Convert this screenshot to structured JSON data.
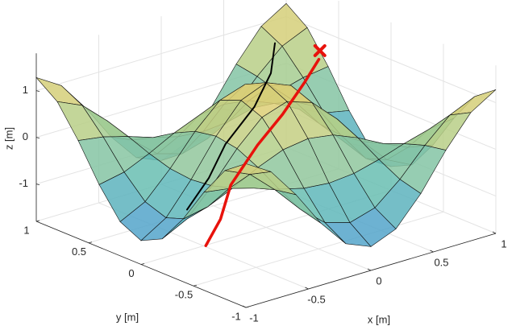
{
  "chart_data": {
    "type": "surface",
    "xlabel": "x [m]",
    "ylabel": "y [m]",
    "zlabel": "z [m]",
    "xlim": [
      -1,
      1
    ],
    "ylim": [
      -1,
      1
    ],
    "zlim": [
      -1.8,
      1.8
    ],
    "xticks": [
      -1,
      -0.5,
      0,
      0.5,
      1
    ],
    "yticks": [
      -1,
      -0.5,
      0,
      0.5,
      1
    ],
    "zticks": [
      -1,
      0,
      1
    ],
    "grid": true,
    "colormap": [
      "#4a96d6",
      "#62bcb6",
      "#b4cf8a",
      "#f0cf6c"
    ],
    "surface": {
      "x": [
        -1,
        -0.8,
        -0.6,
        -0.4,
        -0.2,
        0,
        0.2,
        0.4,
        0.6,
        0.8,
        1
      ],
      "y": [
        -1,
        -0.8,
        -0.6,
        -0.4,
        -0.2,
        0,
        0.2,
        0.4,
        0.6,
        0.8,
        1
      ],
      "z": [
        [
          1.28,
          0.95,
          0.3,
          -0.46,
          -1.07,
          -1.29,
          -1.07,
          -0.46,
          0.3,
          0.95,
          1.28
        ],
        [
          0.95,
          0.71,
          0.22,
          -0.35,
          -0.8,
          -0.96,
          -0.8,
          -0.35,
          0.22,
          0.71,
          0.95
        ],
        [
          0.3,
          0.22,
          0.07,
          -0.11,
          -0.25,
          -0.3,
          -0.25,
          -0.11,
          0.07,
          0.22,
          0.3
        ],
        [
          -0.47,
          -0.35,
          -0.11,
          0.17,
          0.39,
          0.47,
          0.39,
          0.17,
          -0.11,
          -0.35,
          -0.47
        ],
        [
          -1.07,
          -0.8,
          -0.25,
          0.39,
          0.9,
          1.08,
          0.9,
          0.39,
          -0.25,
          -0.8,
          -1.07
        ],
        [
          -1.29,
          -0.96,
          -0.3,
          0.47,
          1.08,
          1.3,
          1.08,
          0.47,
          -0.3,
          -0.96,
          -1.29
        ],
        [
          -1.07,
          -0.8,
          -0.25,
          0.39,
          0.9,
          1.08,
          0.9,
          0.39,
          -0.25,
          -0.8,
          -1.07
        ],
        [
          -0.47,
          -0.35,
          -0.11,
          0.17,
          0.39,
          0.47,
          0.39,
          0.17,
          -0.11,
          -0.35,
          -0.47
        ],
        [
          0.3,
          0.22,
          0.07,
          -0.11,
          -0.25,
          -0.3,
          -0.25,
          -0.11,
          0.07,
          0.22,
          0.3
        ],
        [
          0.95,
          0.71,
          0.22,
          -0.35,
          -0.8,
          -0.96,
          -0.8,
          -0.35,
          0.22,
          0.71,
          0.95
        ],
        [
          1.28,
          0.95,
          0.3,
          -0.46,
          -1.07,
          -1.29,
          -1.07,
          -0.46,
          0.3,
          0.95,
          1.28
        ]
      ]
    },
    "paths": [
      {
        "color": "#000000",
        "x": [
          -0.8,
          -0.5,
          -0.2,
          0.2,
          0.5,
          0.7
        ],
        "y": [
          -0.2,
          -0.05,
          0.15,
          0.35,
          0.55,
          0.75
        ],
        "z": [
          -0.6,
          -0.3,
          0,
          0.3,
          0.6,
          0.9
        ]
      },
      {
        "color": "#e8120c",
        "x": [
          -0.91,
          -0.7,
          -0.45,
          -0.06,
          0.3,
          0.6,
          0.8
        ],
        "y": [
          -0.51,
          -0.4,
          -0.2,
          0.01,
          0.2,
          0.35,
          0.45
        ],
        "z": [
          -1.0,
          -0.7,
          -0.35,
          0,
          0.2,
          0.5,
          0.75
        ]
      }
    ],
    "target": {
      "x": 0.85,
      "y": 0.5,
      "z": 0.85,
      "color": "#e8120c"
    }
  }
}
